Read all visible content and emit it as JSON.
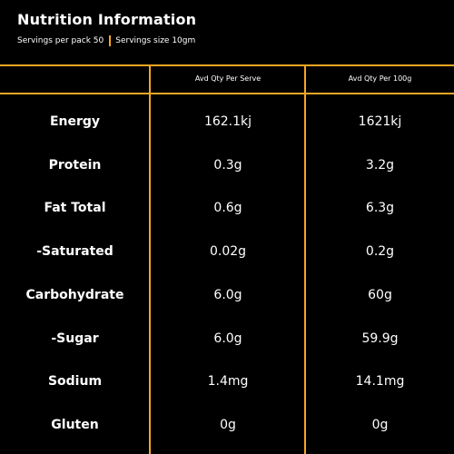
{
  "header": {
    "title": "Nutrition Information",
    "servings_per_pack": "Servings per pack 50",
    "serving_size": "Servings size 10gm"
  },
  "table": {
    "columns": [
      "",
      "Avd Qty Per Serve",
      "Avd Qty Per 100g"
    ],
    "rows": [
      {
        "label": "Energy",
        "per_serve": "162.1kj",
        "per_100g": "1621kj"
      },
      {
        "label": "Protein",
        "per_serve": "0.3g",
        "per_100g": "3.2g"
      },
      {
        "label": "Fat Total",
        "per_serve": "0.6g",
        "per_100g": "6.3g"
      },
      {
        "label": "-Saturated",
        "per_serve": "0.02g",
        "per_100g": "0.2g"
      },
      {
        "label": "Carbohydrate",
        "per_serve": "6.0g",
        "per_100g": "60g"
      },
      {
        "label": "-Sugar",
        "per_serve": "6.0g",
        "per_100g": "59.9g"
      },
      {
        "label": "Sodium",
        "per_serve": "1.4mg",
        "per_100g": "14.1mg"
      },
      {
        "label": "Gluten",
        "per_serve": "0g",
        "per_100g": "0g"
      }
    ]
  },
  "colors": {
    "background": "#000000",
    "accent": "#f5a623",
    "text": "#ffffff"
  }
}
